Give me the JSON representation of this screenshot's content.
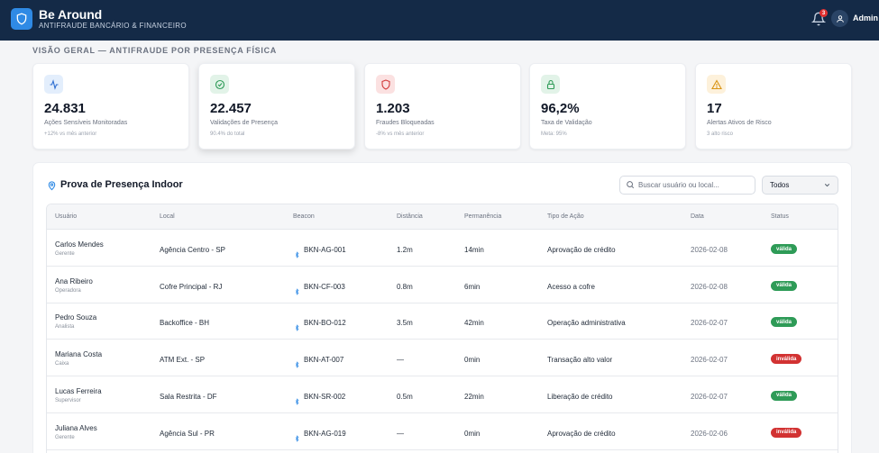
{
  "header": {
    "app_name": "Be Around",
    "app_subtitle": "ANTIFRAUDE BANCÁRIO & FINANCEIRO",
    "notification_count": "3",
    "user_name": "Admin"
  },
  "overview": {
    "title": "VISÃO GERAL — ANTIFRAUDE POR PRESENÇA FÍSICA"
  },
  "kpis": [
    {
      "value": "24.831",
      "label": "Ações Sensíveis Monitoradas",
      "sub": "+12% vs mês anterior",
      "icon": "activity-icon",
      "icon_bg": "#e3eefc",
      "icon_color": "#2f6fd1"
    },
    {
      "value": "22.457",
      "label": "Validações de Presença",
      "sub": "90.4% do total",
      "icon": "check-circle-icon",
      "icon_bg": "#e2f3e8",
      "icon_color": "#2e9b57"
    },
    {
      "value": "1.203",
      "label": "Fraudes Bloqueadas",
      "sub": "-8% vs mês anterior",
      "icon": "shield-icon",
      "icon_bg": "#fbe1e1",
      "icon_color": "#d23a3a"
    },
    {
      "value": "96,2%",
      "label": "Taxa de Validação",
      "sub": "Meta: 95%",
      "icon": "lock-icon",
      "icon_bg": "#e2f3e8",
      "icon_color": "#2e9b57"
    },
    {
      "value": "17",
      "label": "Alertas Ativos de Risco",
      "sub": "3 alto risco",
      "icon": "warning-icon",
      "icon_bg": "#fdf1db",
      "icon_color": "#d99414"
    }
  ],
  "panel": {
    "title": "Prova de Presença Indoor",
    "search_placeholder": "Buscar usuário ou local...",
    "filter_value": "Todos"
  },
  "table": {
    "columns": [
      "Usuário",
      "Local",
      "Beacon",
      "Distância",
      "Permanência",
      "Tipo de Ação",
      "Data",
      "Status"
    ],
    "rows": [
      {
        "user": "Carlos Mendes",
        "role": "Gerente",
        "local": "Agência Centro - SP",
        "beacon": "BKN-AG-001",
        "distance": "1.2m",
        "stay": "14min",
        "action": "Aprovação de crédito",
        "date": "2026-02-08",
        "status": "válida"
      },
      {
        "user": "Ana Ribeiro",
        "role": "Operadora",
        "local": "Cofre Principal - RJ",
        "beacon": "BKN-CF-003",
        "distance": "0.8m",
        "stay": "6min",
        "action": "Acesso a cofre",
        "date": "2026-02-08",
        "status": "válida"
      },
      {
        "user": "Pedro Souza",
        "role": "Analista",
        "local": "Backoffice - BH",
        "beacon": "BKN-BO-012",
        "distance": "3.5m",
        "stay": "42min",
        "action": "Operação administrativa",
        "date": "2026-02-07",
        "status": "válida"
      },
      {
        "user": "Mariana Costa",
        "role": "Caixa",
        "local": "ATM Ext. - SP",
        "beacon": "BKN-AT-007",
        "distance": "—",
        "stay": "0min",
        "action": "Transação alto valor",
        "date": "2026-02-07",
        "status": "inválida"
      },
      {
        "user": "Lucas Ferreira",
        "role": "Supervisor",
        "local": "Sala Restrita - DF",
        "beacon": "BKN-SR-002",
        "distance": "0.5m",
        "stay": "22min",
        "action": "Liberação de crédito",
        "date": "2026-02-07",
        "status": "válida"
      },
      {
        "user": "Juliana Alves",
        "role": "Gerente",
        "local": "Agência Sul - PR",
        "beacon": "BKN-AG-019",
        "distance": "—",
        "stay": "0min",
        "action": "Aprovação de crédito",
        "date": "2026-02-06",
        "status": "inválida"
      }
    ]
  },
  "colors": {
    "topbar": "#142a47",
    "valid": "#2e9b57",
    "invalid": "#d23232",
    "bluetooth": "#2f8ae5"
  }
}
